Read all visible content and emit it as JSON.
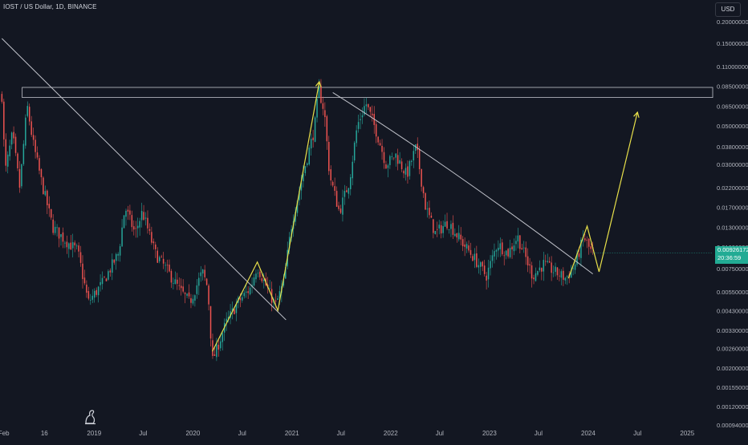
{
  "header": {
    "symbol_line": "IOST / US Dollar, 1D, BINANCE"
  },
  "currency_button": "USD",
  "live_price": {
    "value": "0.00926172",
    "countdown": "20:36:59"
  },
  "colors": {
    "background": "#131722",
    "up": "#26a69a",
    "down": "#ef5350",
    "trend": "#c2c4cc",
    "projection": "#e8e04a",
    "tag": "#22ab94"
  },
  "chart_data": {
    "type": "candlestick",
    "yscale": "log",
    "ylim": [
      0.00094,
      0.245
    ],
    "xlim": [
      "2018-01-18",
      "2025-04-05"
    ],
    "x_ticks": [
      {
        "label": "Feb",
        "date": "2018-02-01"
      },
      {
        "label": "16",
        "date": "2018-07-01"
      },
      {
        "label": "2019",
        "date": "2019-01-01"
      },
      {
        "label": "Jul",
        "date": "2019-07-01"
      },
      {
        "label": "2020",
        "date": "2020-01-01"
      },
      {
        "label": "Jul",
        "date": "2020-07-01"
      },
      {
        "label": "2021",
        "date": "2021-01-01"
      },
      {
        "label": "Jul",
        "date": "2021-07-01"
      },
      {
        "label": "2022",
        "date": "2022-01-01"
      },
      {
        "label": "Jul",
        "date": "2022-07-01"
      },
      {
        "label": "2023",
        "date": "2023-01-01"
      },
      {
        "label": "Jul",
        "date": "2023-07-01"
      },
      {
        "label": "2024",
        "date": "2024-01-01"
      },
      {
        "label": "Jul",
        "date": "2024-07-01"
      },
      {
        "label": "2025",
        "date": "2025-01-01"
      }
    ],
    "y_ticks": [
      "0.20000000",
      "0.15000000",
      "0.11000000",
      "0.08500000",
      "0.06500000",
      "0.05000000",
      "0.03800000",
      "0.03000000",
      "0.02200000",
      "0.01700000",
      "0.01300000",
      "0.01000000",
      "0.00750000",
      "0.00550000",
      "0.00430000",
      "0.00330000",
      "0.00260000",
      "0.00200000",
      "0.00155000",
      "0.00120000",
      "0.00094000"
    ],
    "price_path": [
      [
        "2018-01-25",
        0.075
      ],
      [
        "2018-02-06",
        0.027
      ],
      [
        "2018-03-05",
        0.045
      ],
      [
        "2018-04-01",
        0.022
      ],
      [
        "2018-04-28",
        0.066
      ],
      [
        "2018-05-20",
        0.04
      ],
      [
        "2018-06-20",
        0.024
      ],
      [
        "2018-08-01",
        0.013
      ],
      [
        "2018-09-15",
        0.011
      ],
      [
        "2018-11-01",
        0.0095
      ],
      [
        "2018-12-10",
        0.0048
      ],
      [
        "2019-02-01",
        0.0062
      ],
      [
        "2019-04-01",
        0.0092
      ],
      [
        "2019-04-25",
        0.017
      ],
      [
        "2019-06-01",
        0.012
      ],
      [
        "2019-06-28",
        0.016
      ],
      [
        "2019-08-15",
        0.0092
      ],
      [
        "2019-10-01",
        0.0072
      ],
      [
        "2019-11-15",
        0.0056
      ],
      [
        "2019-12-20",
        0.0048
      ],
      [
        "2020-02-05",
        0.0072
      ],
      [
        "2020-02-25",
        0.0058
      ],
      [
        "2020-03-13",
        0.0022
      ],
      [
        "2020-05-01",
        0.0036
      ],
      [
        "2020-06-15",
        0.0048
      ],
      [
        "2020-08-01",
        0.0058
      ],
      [
        "2020-08-25",
        0.0078
      ],
      [
        "2020-10-01",
        0.0058
      ],
      [
        "2020-11-01",
        0.0046
      ],
      [
        "2020-12-01",
        0.0062
      ],
      [
        "2021-01-01",
        0.014
      ],
      [
        "2021-02-15",
        0.028
      ],
      [
        "2021-03-25",
        0.048
      ],
      [
        "2021-04-10",
        0.082
      ],
      [
        "2021-05-01",
        0.06
      ],
      [
        "2021-05-20",
        0.026
      ],
      [
        "2021-06-25",
        0.016
      ],
      [
        "2021-08-01",
        0.024
      ],
      [
        "2021-08-30",
        0.05
      ],
      [
        "2021-10-01",
        0.068
      ],
      [
        "2021-11-10",
        0.046
      ],
      [
        "2021-12-15",
        0.03
      ],
      [
        "2022-01-20",
        0.034
      ],
      [
        "2022-03-01",
        0.026
      ],
      [
        "2022-04-05",
        0.038
      ],
      [
        "2022-05-10",
        0.017
      ],
      [
        "2022-06-15",
        0.012
      ],
      [
        "2022-08-01",
        0.014
      ],
      [
        "2022-09-15",
        0.011
      ],
      [
        "2022-11-09",
        0.0085
      ],
      [
        "2022-12-20",
        0.0068
      ],
      [
        "2023-01-30",
        0.0105
      ],
      [
        "2023-03-10",
        0.0092
      ],
      [
        "2023-04-15",
        0.0115
      ],
      [
        "2023-06-10",
        0.0068
      ],
      [
        "2023-07-20",
        0.008
      ],
      [
        "2023-08-30",
        0.0072
      ],
      [
        "2023-10-10",
        0.0066
      ],
      [
        "2023-11-15",
        0.008
      ],
      [
        "2023-12-15",
        0.0115
      ],
      [
        "2024-01-08",
        0.0096
      ],
      [
        "2024-01-18",
        0.00926
      ]
    ],
    "trendlines": [
      {
        "from": [
          "2018-01-25",
          0.16
        ],
        "to": [
          "2020-12-10",
          0.0038
        ]
      },
      {
        "from": [
          "2021-06-01",
          0.078
        ],
        "to": [
          "2024-01-18",
          0.007
        ]
      }
    ],
    "resistance_zone": {
      "from": "2018-04-10",
      "to": "2025-04-05",
      "low": 0.073,
      "high": 0.0835
    },
    "projection_paths": [
      [
        [
          "2020-03-13",
          0.0025
        ],
        [
          "2020-08-26",
          0.0082
        ],
        [
          "2020-11-10",
          0.0043
        ],
        [
          "2021-04-12",
          0.09
        ]
      ],
      [
        [
          "2023-10-20",
          0.0066
        ],
        [
          "2023-12-28",
          0.0132
        ],
        [
          "2024-02-10",
          0.0072
        ],
        [
          "2024-07-01",
          0.06
        ]
      ]
    ]
  }
}
